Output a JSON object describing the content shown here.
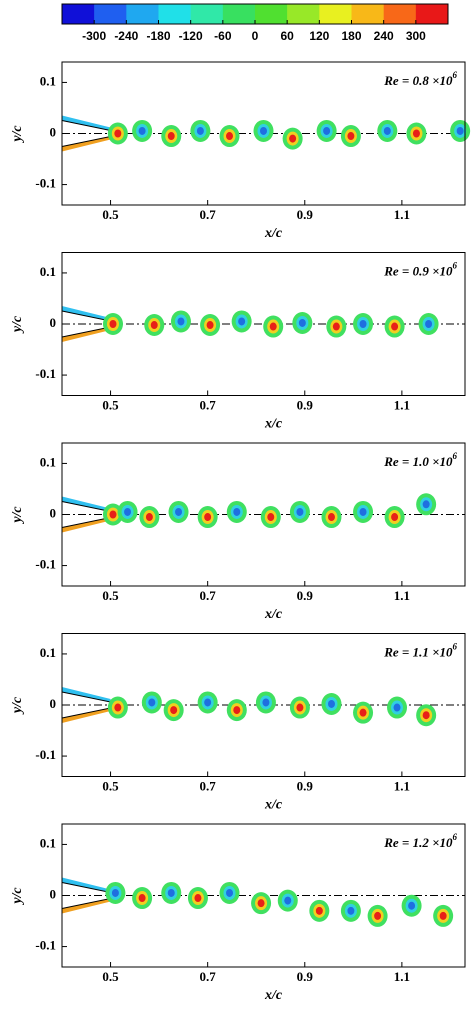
{
  "chart_data": [
    {
      "type": "colorbar",
      "ticks": [
        -300,
        -240,
        -180,
        -120,
        -60,
        0,
        60,
        120,
        180,
        240,
        300
      ],
      "colors": [
        "#1010d8",
        "#1f5ff0",
        "#1fa8f0",
        "#20e0e8",
        "#30e8a8",
        "#38e060",
        "#50e030",
        "#98e828",
        "#e8f020",
        "#f8b818",
        "#f86818",
        "#e81818"
      ]
    },
    {
      "type": "scatter",
      "annotation": "Re = 0.8 ×10",
      "annotation_sup": "6",
      "xlabel": "x/c",
      "ylabel": "y/c",
      "xlim": [
        0.4,
        1.23
      ],
      "ylim": [
        -0.14,
        0.14
      ],
      "xticks": [
        0.5,
        0.7,
        0.9,
        1.1
      ],
      "yticks": [
        -0.1,
        0,
        0.1
      ],
      "series": [
        {
          "color": "#e82018",
          "x": [
            0.515,
            0.625,
            0.745,
            0.875,
            0.995,
            1.13
          ],
          "values": [
            0,
            -0.005,
            -0.005,
            -0.01,
            -0.005,
            0
          ]
        },
        {
          "color": "#1f6fe0",
          "x": [
            0.565,
            0.685,
            0.815,
            0.945,
            1.07,
            1.22
          ],
          "values": [
            0.005,
            0.005,
            0.005,
            0.005,
            0.005,
            0.005
          ]
        }
      ]
    },
    {
      "type": "scatter",
      "annotation": "Re = 0.9 ×10",
      "annotation_sup": "6",
      "xlabel": "x/c",
      "ylabel": "y/c",
      "xlim": [
        0.4,
        1.23
      ],
      "ylim": [
        -0.14,
        0.14
      ],
      "xticks": [
        0.5,
        0.7,
        0.9,
        1.1
      ],
      "yticks": [
        -0.1,
        0,
        0.1
      ],
      "series": [
        {
          "color": "#e82018",
          "x": [
            0.505,
            0.59,
            0.705,
            0.835,
            0.965,
            1.085
          ],
          "values": [
            0,
            -0.002,
            -0.002,
            -0.005,
            -0.005,
            -0.005
          ]
        },
        {
          "color": "#1f6fe0",
          "x": [
            0.645,
            0.77,
            0.895,
            1.02,
            1.155
          ],
          "values": [
            0.005,
            0.005,
            0.002,
            0,
            0
          ]
        }
      ]
    },
    {
      "type": "scatter",
      "annotation": "Re = 1.0 ×10",
      "annotation_sup": "6",
      "xlabel": "x/c",
      "ylabel": "y/c",
      "xlim": [
        0.4,
        1.23
      ],
      "ylim": [
        -0.14,
        0.14
      ],
      "xticks": [
        0.5,
        0.7,
        0.9,
        1.1
      ],
      "yticks": [
        -0.1,
        0,
        0.1
      ],
      "series": [
        {
          "color": "#e82018",
          "x": [
            0.505,
            0.58,
            0.7,
            0.83,
            0.955,
            1.085
          ],
          "values": [
            0,
            -0.005,
            -0.005,
            -0.005,
            -0.005,
            -0.005
          ]
        },
        {
          "color": "#1f6fe0",
          "x": [
            0.535,
            0.64,
            0.76,
            0.89,
            1.02,
            1.15
          ],
          "values": [
            0.005,
            0.005,
            0.005,
            0.005,
            0.005,
            0.02
          ]
        }
      ]
    },
    {
      "type": "scatter",
      "annotation": "Re = 1.1 ×10",
      "annotation_sup": "6",
      "xlabel": "x/c",
      "ylabel": "y/c",
      "xlim": [
        0.4,
        1.23
      ],
      "ylim": [
        -0.14,
        0.14
      ],
      "xticks": [
        0.5,
        0.7,
        0.9,
        1.1
      ],
      "yticks": [
        -0.1,
        0,
        0.1
      ],
      "series": [
        {
          "color": "#e82018",
          "x": [
            0.515,
            0.63,
            0.76,
            0.89,
            1.02,
            1.15
          ],
          "values": [
            -0.005,
            -0.01,
            -0.01,
            -0.005,
            -0.015,
            -0.02
          ]
        },
        {
          "color": "#1f6fe0",
          "x": [
            0.585,
            0.7,
            0.82,
            0.955,
            1.09
          ],
          "values": [
            0.005,
            0.005,
            0.005,
            0.002,
            -0.005
          ]
        }
      ]
    },
    {
      "type": "scatter",
      "annotation": "Re = 1.2 ×10",
      "annotation_sup": "6",
      "xlabel": "x/c",
      "ylabel": "y/c",
      "xlim": [
        0.4,
        1.23
      ],
      "ylim": [
        -0.14,
        0.14
      ],
      "xticks": [
        0.5,
        0.7,
        0.9,
        1.1
      ],
      "yticks": [
        -0.1,
        0,
        0.1
      ],
      "series": [
        {
          "color": "#e82018",
          "x": [
            0.565,
            0.68,
            0.81,
            0.93,
            1.05,
            1.185
          ],
          "values": [
            -0.005,
            -0.005,
            -0.015,
            -0.03,
            -0.04,
            -0.04
          ]
        },
        {
          "color": "#1f6fe0",
          "x": [
            0.51,
            0.625,
            0.745,
            0.865,
            0.995,
            1.12
          ],
          "values": [
            0.005,
            0.005,
            0.005,
            -0.01,
            -0.03,
            -0.02
          ]
        }
      ]
    }
  ]
}
